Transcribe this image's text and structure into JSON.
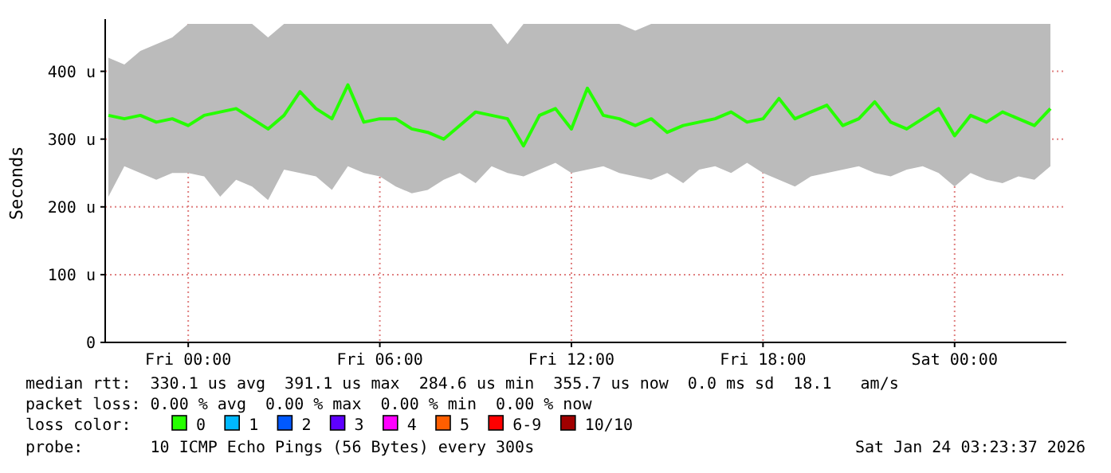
{
  "chart_data": {
    "type": "line",
    "ylabel": "Seconds",
    "x": [
      "2026-01-22T21:30",
      "2026-01-22T22:00",
      "2026-01-22T22:30",
      "2026-01-22T23:00",
      "2026-01-22T23:30",
      "2026-01-23T00:00",
      "2026-01-23T00:30",
      "2026-01-23T01:00",
      "2026-01-23T01:30",
      "2026-01-23T02:00",
      "2026-01-23T02:30",
      "2026-01-23T03:00",
      "2026-01-23T03:30",
      "2026-01-23T04:00",
      "2026-01-23T04:30",
      "2026-01-23T05:00",
      "2026-01-23T05:30",
      "2026-01-23T06:00",
      "2026-01-23T06:30",
      "2026-01-23T07:00",
      "2026-01-23T07:30",
      "2026-01-23T08:00",
      "2026-01-23T08:30",
      "2026-01-23T09:00",
      "2026-01-23T09:30",
      "2026-01-23T10:00",
      "2026-01-23T10:30",
      "2026-01-23T11:00",
      "2026-01-23T11:30",
      "2026-01-23T12:00",
      "2026-01-23T12:30",
      "2026-01-23T13:00",
      "2026-01-23T13:30",
      "2026-01-23T14:00",
      "2026-01-23T14:30",
      "2026-01-23T15:00",
      "2026-01-23T15:30",
      "2026-01-23T16:00",
      "2026-01-23T16:30",
      "2026-01-23T17:00",
      "2026-01-23T17:30",
      "2026-01-23T18:00",
      "2026-01-23T18:30",
      "2026-01-23T19:00",
      "2026-01-23T19:30",
      "2026-01-23T20:00",
      "2026-01-23T20:30",
      "2026-01-23T21:00",
      "2026-01-23T21:30",
      "2026-01-23T22:00",
      "2026-01-23T22:30",
      "2026-01-23T23:00",
      "2026-01-23T23:30",
      "2026-01-24T00:00",
      "2026-01-24T00:30",
      "2026-01-24T01:00",
      "2026-01-24T01:30",
      "2026-01-24T02:00",
      "2026-01-24T02:30",
      "2026-01-24T03:00"
    ],
    "series": [
      {
        "name": "0",
        "color": "#26ff00",
        "values": [
          335,
          330,
          335,
          325,
          330,
          320,
          335,
          340,
          345,
          330,
          315,
          335,
          370,
          345,
          330,
          380,
          325,
          330,
          330,
          315,
          310,
          300,
          320,
          340,
          335,
          330,
          290,
          335,
          345,
          315,
          375,
          335,
          330,
          320,
          330,
          310,
          320,
          325,
          330,
          340,
          325,
          330,
          360,
          330,
          340,
          350,
          320,
          330,
          355,
          325,
          315,
          330,
          345,
          305,
          335,
          325,
          340,
          330,
          320,
          345
        ],
        "lower": [
          215,
          260,
          250,
          240,
          250,
          250,
          245,
          215,
          240,
          230,
          210,
          255,
          250,
          245,
          225,
          260,
          250,
          245,
          230,
          220,
          225,
          240,
          250,
          235,
          260,
          250,
          245,
          255,
          265,
          250,
          255,
          260,
          250,
          245,
          240,
          250,
          235,
          255,
          260,
          250,
          265,
          250,
          240,
          230,
          245,
          250,
          255,
          260,
          250,
          245,
          255,
          260,
          250,
          230,
          250,
          240,
          235,
          245,
          240,
          260
        ],
        "upper": [
          420,
          410,
          430,
          440,
          450,
          470,
          470,
          470,
          470,
          470,
          450,
          470,
          470,
          470,
          470,
          470,
          470,
          470,
          470,
          470,
          470,
          470,
          470,
          470,
          470,
          440,
          470,
          470,
          470,
          470,
          470,
          470,
          470,
          460,
          470,
          470,
          470,
          470,
          470,
          470,
          470,
          470,
          470,
          470,
          470,
          470,
          470,
          470,
          470,
          470,
          470,
          470,
          470,
          470,
          470,
          470,
          470,
          470,
          470,
          470
        ]
      },
      {
        "name": "1",
        "color": "#00b8ff",
        "values": [
          null,
          null,
          null,
          null,
          null,
          null,
          null,
          null,
          null,
          null,
          null,
          null,
          null,
          null,
          null,
          null,
          null,
          null,
          null,
          null,
          null,
          null,
          null,
          null,
          null,
          null,
          null,
          null,
          null,
          null,
          null,
          null,
          null,
          null,
          null,
          null,
          null,
          null,
          null,
          null,
          null,
          null,
          null,
          null,
          null,
          null,
          null,
          null,
          null,
          null,
          null,
          null,
          null,
          null,
          null,
          null,
          null,
          null,
          null,
          null
        ]
      },
      {
        "name": "2",
        "color": "#0059ff",
        "values": [
          null,
          null,
          null,
          null,
          null,
          null,
          null,
          null,
          null,
          null,
          null,
          null,
          null,
          null,
          null,
          null,
          null,
          null,
          null,
          null,
          null,
          null,
          null,
          null,
          null,
          null,
          null,
          null,
          null,
          null,
          null,
          null,
          null,
          null,
          null,
          null,
          null,
          null,
          null,
          null,
          null,
          null,
          null,
          null,
          null,
          null,
          null,
          null,
          null,
          null,
          null,
          null,
          null,
          null,
          null,
          null,
          null,
          null,
          null,
          null
        ]
      },
      {
        "name": "3",
        "color": "#5e00ff",
        "values": [
          null,
          null,
          null,
          null,
          null,
          null,
          null,
          null,
          null,
          null,
          null,
          null,
          null,
          null,
          null,
          null,
          null,
          null,
          null,
          null,
          null,
          null,
          null,
          null,
          null,
          null,
          null,
          null,
          null,
          null,
          null,
          null,
          null,
          null,
          null,
          null,
          null,
          null,
          null,
          null,
          null,
          null,
          null,
          null,
          null,
          null,
          null,
          null,
          null,
          null,
          null,
          null,
          null,
          null,
          null,
          null,
          null,
          null,
          null,
          null
        ]
      },
      {
        "name": "4",
        "color": "#ff00ff",
        "values": [
          null,
          null,
          null,
          null,
          null,
          null,
          null,
          null,
          null,
          null,
          null,
          null,
          null,
          null,
          null,
          null,
          null,
          null,
          null,
          null,
          null,
          null,
          null,
          null,
          null,
          null,
          null,
          null,
          null,
          null,
          null,
          null,
          null,
          null,
          null,
          null,
          null,
          null,
          null,
          null,
          null,
          null,
          null,
          null,
          null,
          null,
          null,
          null,
          null,
          null,
          null,
          null,
          null,
          null,
          null,
          null,
          null,
          null,
          null,
          null
        ]
      },
      {
        "name": "5",
        "color": "#ff5e00",
        "values": [
          null,
          null,
          null,
          null,
          null,
          null,
          null,
          null,
          null,
          null,
          null,
          null,
          null,
          null,
          null,
          null,
          null,
          null,
          null,
          null,
          null,
          null,
          null,
          null,
          null,
          null,
          null,
          null,
          null,
          null,
          null,
          null,
          null,
          null,
          null,
          null,
          null,
          null,
          null,
          null,
          null,
          null,
          null,
          null,
          null,
          null,
          null,
          null,
          null,
          null,
          null,
          null,
          null,
          null,
          null,
          null,
          null,
          null,
          null,
          null
        ]
      },
      {
        "name": "6-9",
        "color": "#ff0000",
        "values": [
          null,
          null,
          null,
          null,
          null,
          null,
          null,
          null,
          null,
          null,
          null,
          null,
          null,
          null,
          null,
          null,
          null,
          null,
          null,
          null,
          null,
          null,
          null,
          null,
          null,
          null,
          null,
          null,
          null,
          null,
          null,
          null,
          null,
          null,
          null,
          null,
          null,
          null,
          null,
          null,
          null,
          null,
          null,
          null,
          null,
          null,
          null,
          null,
          null,
          null,
          null,
          null,
          null,
          null,
          null,
          null,
          null,
          null,
          null,
          null
        ]
      },
      {
        "name": "10/10",
        "color": "#a00000",
        "values": [
          null,
          null,
          null,
          null,
          null,
          null,
          null,
          null,
          null,
          null,
          null,
          null,
          null,
          null,
          null,
          null,
          null,
          null,
          null,
          null,
          null,
          null,
          null,
          null,
          null,
          null,
          null,
          null,
          null,
          null,
          null,
          null,
          null,
          null,
          null,
          null,
          null,
          null,
          null,
          null,
          null,
          null,
          null,
          null,
          null,
          null,
          null,
          null,
          null,
          null,
          null,
          null,
          null,
          null,
          null,
          null,
          null,
          null,
          null,
          null
        ]
      }
    ],
    "legend_title": "loss color:",
    "legend": "bottom",
    "grid": true,
    "xlim": [
      "2026-01-22T21:24",
      "2026-01-24T03:30"
    ],
    "xticks": [
      {
        "value": "2026-01-23T00:00",
        "label": "Fri 00:00"
      },
      {
        "value": "2026-01-23T06:00",
        "label": "Fri 06:00"
      },
      {
        "value": "2026-01-23T12:00",
        "label": "Fri 12:00"
      },
      {
        "value": "2026-01-23T18:00",
        "label": "Fri 18:00"
      },
      {
        "value": "2026-01-24T00:00",
        "label": "Sat 00:00"
      }
    ],
    "ylim": [
      0,
      470
    ],
    "yticks": [
      0,
      {
        "value": 100,
        "label": "100 u"
      },
      {
        "value": 200,
        "label": "200 u"
      },
      {
        "value": 300,
        "label": "300 u"
      },
      {
        "value": 400,
        "label": "400 u"
      }
    ],
    "annotations": [
      "median rtt:  330.1 us avg  391.1 us max  284.6 us min  355.7 us now  0.0 ms sd  18.1   am/s",
      "packet loss: 0.00 % avg  0.00 % max  0.00 % min  0.00 % now",
      "probe:       10 ICMP Echo Pings (56 Bytes) every 300s",
      "Sat Jan 24 03:23:37 2026"
    ]
  }
}
